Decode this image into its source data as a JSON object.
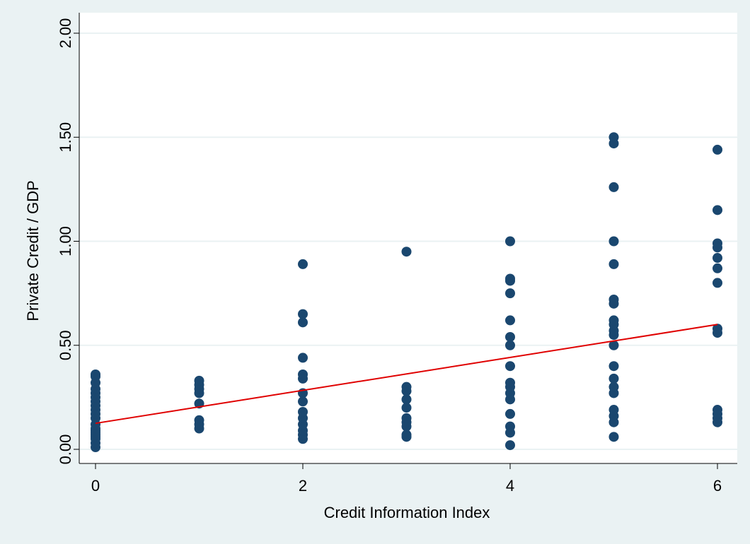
{
  "chart_data": {
    "type": "scatter",
    "title": "",
    "xlabel": "Credit Information Index",
    "ylabel": "Private Credit / GDP",
    "xlim": [
      0,
      6
    ],
    "ylim": [
      0,
      2
    ],
    "x_ticks": [
      "0",
      "2",
      "4",
      "6"
    ],
    "x_tick_values": [
      0,
      2,
      4,
      6
    ],
    "y_ticks": [
      "0.00",
      "0.50",
      "1.00",
      "1.50",
      "2.00"
    ],
    "y_tick_values": [
      0,
      0.5,
      1.0,
      1.5,
      2.0
    ],
    "grid": true,
    "legend": "none",
    "background_color": "#eaf2f3",
    "plot_background_color": "#ffffff",
    "point_color": "#1a476f",
    "fit_line_color": "#e00000",
    "series": [
      {
        "kind": "points",
        "points": [
          [
            0,
            0.01
          ],
          [
            0,
            0.03
          ],
          [
            0,
            0.05
          ],
          [
            0,
            0.06
          ],
          [
            0,
            0.07
          ],
          [
            0,
            0.08
          ],
          [
            0,
            0.09
          ],
          [
            0,
            0.1
          ],
          [
            0,
            0.12
          ],
          [
            0,
            0.15
          ],
          [
            0,
            0.17
          ],
          [
            0,
            0.19
          ],
          [
            0,
            0.21
          ],
          [
            0,
            0.23
          ],
          [
            0,
            0.25
          ],
          [
            0,
            0.27
          ],
          [
            0,
            0.29
          ],
          [
            0,
            0.32
          ],
          [
            0,
            0.35
          ],
          [
            0,
            0.36
          ],
          [
            1,
            0.1
          ],
          [
            1,
            0.12
          ],
          [
            1,
            0.14
          ],
          [
            1,
            0.22
          ],
          [
            1,
            0.27
          ],
          [
            1,
            0.29
          ],
          [
            1,
            0.31
          ],
          [
            1,
            0.33
          ],
          [
            2,
            0.05
          ],
          [
            2,
            0.07
          ],
          [
            2,
            0.09
          ],
          [
            2,
            0.12
          ],
          [
            2,
            0.15
          ],
          [
            2,
            0.18
          ],
          [
            2,
            0.23
          ],
          [
            2,
            0.27
          ],
          [
            2,
            0.34
          ],
          [
            2,
            0.36
          ],
          [
            2,
            0.44
          ],
          [
            2,
            0.61
          ],
          [
            2,
            0.65
          ],
          [
            2,
            0.89
          ],
          [
            3,
            0.06
          ],
          [
            3,
            0.07
          ],
          [
            3,
            0.11
          ],
          [
            3,
            0.13
          ],
          [
            3,
            0.15
          ],
          [
            3,
            0.2
          ],
          [
            3,
            0.24
          ],
          [
            3,
            0.28
          ],
          [
            3,
            0.3
          ],
          [
            3,
            0.95
          ],
          [
            4,
            0.02
          ],
          [
            4,
            0.08
          ],
          [
            4,
            0.11
          ],
          [
            4,
            0.17
          ],
          [
            4,
            0.24
          ],
          [
            4,
            0.27
          ],
          [
            4,
            0.3
          ],
          [
            4,
            0.32
          ],
          [
            4,
            0.4
          ],
          [
            4,
            0.5
          ],
          [
            4,
            0.54
          ],
          [
            4,
            0.62
          ],
          [
            4,
            0.75
          ],
          [
            4,
            0.81
          ],
          [
            4,
            0.82
          ],
          [
            4,
            1.0
          ],
          [
            5,
            0.06
          ],
          [
            5,
            0.13
          ],
          [
            5,
            0.16
          ],
          [
            5,
            0.19
          ],
          [
            5,
            0.27
          ],
          [
            5,
            0.3
          ],
          [
            5,
            0.34
          ],
          [
            5,
            0.4
          ],
          [
            5,
            0.5
          ],
          [
            5,
            0.55
          ],
          [
            5,
            0.57
          ],
          [
            5,
            0.6
          ],
          [
            5,
            0.62
          ],
          [
            5,
            0.7
          ],
          [
            5,
            0.72
          ],
          [
            5,
            0.89
          ],
          [
            5,
            1.0
          ],
          [
            5,
            1.26
          ],
          [
            5,
            1.47
          ],
          [
            5,
            1.5
          ],
          [
            6,
            0.13
          ],
          [
            6,
            0.15
          ],
          [
            6,
            0.17
          ],
          [
            6,
            0.19
          ],
          [
            6,
            0.56
          ],
          [
            6,
            0.58
          ],
          [
            6,
            0.8
          ],
          [
            6,
            0.87
          ],
          [
            6,
            0.92
          ],
          [
            6,
            0.97
          ],
          [
            6,
            0.99
          ],
          [
            6,
            1.15
          ],
          [
            6,
            1.44
          ]
        ]
      },
      {
        "kind": "fitted-line",
        "points": [
          [
            0,
            0.125
          ],
          [
            6,
            0.6
          ]
        ]
      }
    ]
  }
}
